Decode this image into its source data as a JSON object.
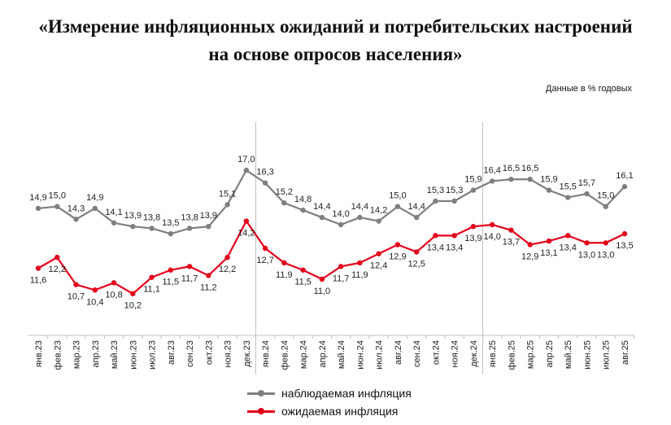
{
  "title_line1": "«Измерение инфляционных ожиданий и потребительских настроений",
  "title_line2": "на основе опросов населения»",
  "units_note": "Данные в % годовых",
  "chart_data": {
    "type": "line",
    "title": "«Измерение инфляционных ожиданий и потребительских настроений на основе опросов населения»",
    "ylabel": "Данные в % годовых",
    "categories": [
      "янв.23",
      "фев.23",
      "мар.23",
      "апр.23",
      "май.23",
      "июн.23",
      "июл.23",
      "авг.23",
      "сен.23",
      "окт.23",
      "ноя.23",
      "дек.23",
      "янв.24",
      "фев.24",
      "мар.24",
      "апр.24",
      "май.24",
      "июн.24",
      "июл.24",
      "авг.24",
      "сен.24",
      "окт.24",
      "ноя.24",
      "дек.24",
      "янв.25",
      "фев.25",
      "мар.25",
      "апр.25",
      "май.25",
      "июн.25",
      "июл.25",
      "авг.25"
    ],
    "series": [
      {
        "name": "наблюдаемая инфляция",
        "color": "#7f7f7f",
        "values": [
          14.9,
          15.0,
          14.3,
          14.9,
          14.1,
          13.9,
          13.8,
          13.5,
          13.8,
          13.9,
          15.1,
          17.0,
          16.3,
          15.2,
          14.8,
          14.4,
          14.0,
          14.4,
          14.2,
          15.0,
          14.4,
          15.3,
          15.3,
          15.9,
          16.4,
          16.5,
          16.5,
          15.9,
          15.5,
          15.7,
          15.0,
          16.1
        ]
      },
      {
        "name": "ожидаемая инфляция",
        "color": "#e3001b",
        "values": [
          11.6,
          12.2,
          10.7,
          10.4,
          10.8,
          10.2,
          11.1,
          11.5,
          11.7,
          11.2,
          12.2,
          14.2,
          12.7,
          11.9,
          11.5,
          11.0,
          11.7,
          11.9,
          12.4,
          12.9,
          12.5,
          13.4,
          13.4,
          13.9,
          14.0,
          13.7,
          12.9,
          13.1,
          13.4,
          13.0,
          13.0,
          13.5
        ]
      }
    ],
    "year_separators": [
      "дек.23/янв.24",
      "дек.24/янв.25"
    ],
    "legend_position": "bottom",
    "grid": false
  }
}
